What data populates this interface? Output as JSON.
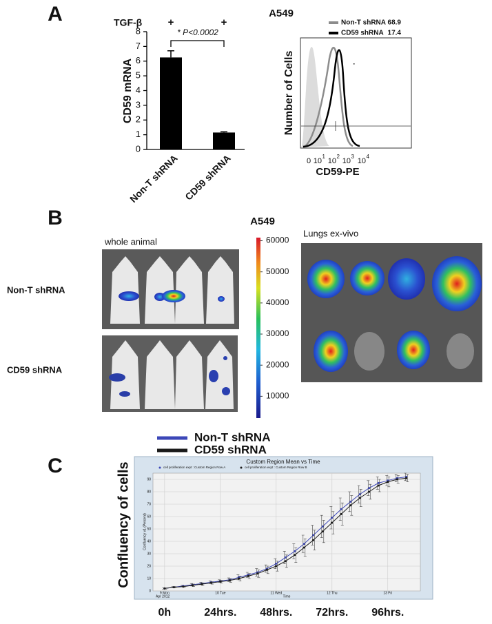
{
  "panel_labels": [
    "A",
    "B",
    "C"
  ],
  "chart_data": [
    {
      "type": "bar",
      "title": "A549",
      "treatment_label": "TGF-β",
      "treatment_marks": [
        "+",
        "+"
      ],
      "annotation": "* P<0.0002",
      "y_label": "CD59 mRNA",
      "categories": [
        "Non-T shRNA",
        "CD59 shRNA"
      ],
      "values": [
        6.25,
        1.15
      ],
      "errors": [
        0.45,
        0.05
      ],
      "color": "#000000",
      "ylim": [
        0,
        8
      ],
      "yticks": [
        0,
        1,
        2,
        3,
        4,
        5,
        6,
        7,
        8
      ]
    },
    {
      "type": "line",
      "title": "Custom Region Mean vs Time",
      "inner_legend": [
        "cell proliferation expt : Custom Region Row A",
        "cell proliferation expt : Custom Region Row B"
      ],
      "x_label": "Time",
      "x_sublabel": "Apr 2012",
      "y_label": "Confluency v1 (Percent)",
      "outer_y_label": "Confluency of cells",
      "x": [
        0,
        4,
        8,
        12,
        16,
        20,
        24,
        28,
        32,
        36,
        40,
        44,
        48,
        52,
        56,
        60,
        64,
        68,
        72,
        76,
        80,
        84,
        88,
        92,
        96,
        100,
        104
      ],
      "xlim": [
        -5,
        110
      ],
      "xticks": [
        {
          "value": 0,
          "label": "9 Mon"
        },
        {
          "value": 24,
          "label": "10 Tue"
        },
        {
          "value": 48,
          "label": "11 Wed"
        },
        {
          "value": 72,
          "label": "12 Thu"
        },
        {
          "value": 96,
          "label": "13 Fri"
        }
      ],
      "outer_xticks": [
        {
          "value": 0,
          "label": "0h"
        },
        {
          "value": 24,
          "label": "24hrs."
        },
        {
          "value": 48,
          "label": "48hrs."
        },
        {
          "value": 72,
          "label": "72hrs."
        },
        {
          "value": 96,
          "label": "96hrs."
        }
      ],
      "ylim": [
        0,
        95
      ],
      "yticks": [
        0,
        10,
        20,
        30,
        40,
        50,
        60,
        70,
        80,
        90
      ],
      "grid": true,
      "series": [
        {
          "name": "Non-T shRNA",
          "color": "#3c47b8",
          "values": [
            2,
            3,
            4,
            5,
            6,
            7,
            8,
            9,
            11,
            13,
            15,
            18,
            22,
            27,
            32,
            38,
            45,
            52,
            59,
            66,
            72,
            78,
            83,
            87,
            89,
            91,
            92
          ],
          "errors": [
            0.5,
            0.5,
            0.5,
            1,
            1,
            1,
            1,
            1.5,
            2,
            2,
            3,
            3,
            4,
            5,
            6,
            7,
            8,
            9,
            9,
            9,
            8,
            7,
            6,
            5,
            4,
            3,
            3
          ]
        },
        {
          "name": "CD59 shRNA",
          "color": "#1a1a1a",
          "values": [
            2,
            3,
            3.5,
            4.5,
            5.5,
            6.5,
            7.5,
            8.5,
            10,
            12,
            14,
            17,
            20,
            24,
            29,
            35,
            41,
            48,
            55,
            62,
            69,
            75,
            80,
            85,
            88,
            90,
            91
          ],
          "errors": [
            0.5,
            0.5,
            0.5,
            1,
            1,
            1,
            1,
            1.5,
            2,
            2,
            3,
            3,
            4,
            5,
            6,
            7,
            8,
            9,
            9,
            9,
            8,
            7,
            6,
            5,
            4,
            3,
            3
          ]
        }
      ]
    }
  ],
  "flow_panel": {
    "legend": [
      {
        "name": "Non-T shRNA",
        "value": "68.9",
        "color": "#8c8c8c"
      },
      {
        "name": "CD59 shRNA",
        "value": "17.4",
        "color": "#000000"
      }
    ],
    "x_label": "CD59-PE",
    "y_label": "Number of Cells",
    "x_tick_zero": "0",
    "x_tick_powers": [
      {
        "base": "10",
        "exp": "1"
      },
      {
        "base": "10",
        "exp": "2"
      },
      {
        "base": "10",
        "exp": "3"
      },
      {
        "base": "10",
        "exp": "4"
      }
    ]
  },
  "panel_b": {
    "title": "A549",
    "whole_animal": "whole animal",
    "rows": [
      "Non-T shRNA",
      "CD59 shRNA"
    ],
    "ex_vivo": "Lungs ex-vivo",
    "colorbar": {
      "lim": [
        3000,
        61000
      ],
      "ticks": [
        10000,
        20000,
        30000,
        40000,
        50000,
        60000
      ]
    }
  }
}
